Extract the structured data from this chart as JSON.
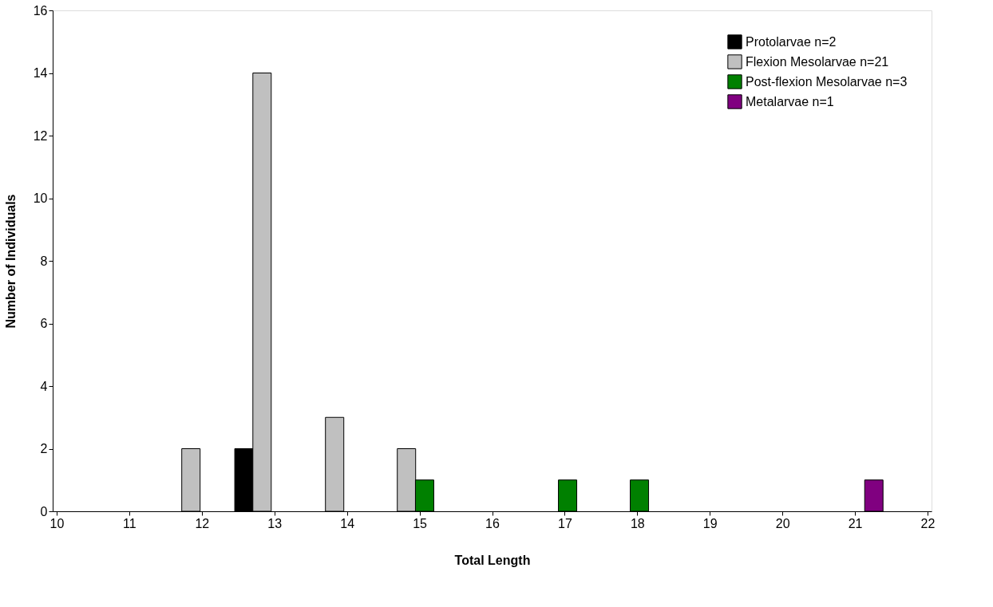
{
  "chart_data": {
    "type": "bar",
    "xlabel": "Total Length",
    "ylabel": "Number of Individuals",
    "xlim": [
      10,
      22
    ],
    "xticks": [
      10,
      11,
      12,
      13,
      14,
      15,
      16,
      17,
      18,
      19,
      20,
      21,
      22
    ],
    "ylim": [
      0,
      16
    ],
    "yticks": [
      0,
      2,
      4,
      6,
      8,
      10,
      12,
      14,
      16
    ],
    "grid": false,
    "legend": "top right",
    "series": [
      {
        "name": "Protolarvae n=2",
        "color": "#000000",
        "x": [
          12.58
        ],
        "values": [
          2
        ]
      },
      {
        "name": "Flexion Mesolarvae n=21",
        "color": "#c0c0c0",
        "x": [
          11.85,
          12.83,
          13.83,
          14.82
        ],
        "values": [
          2,
          14,
          3,
          2
        ]
      },
      {
        "name": "Post-flexion Mesolarvae n=3",
        "color": "#008000",
        "x": [
          15.07,
          17.04,
          18.03
        ],
        "values": [
          1,
          1,
          1
        ]
      },
      {
        "name": "Metalarvae n=1",
        "color": "#800080",
        "x": [
          21.26
        ],
        "values": [
          1
        ]
      }
    ]
  }
}
